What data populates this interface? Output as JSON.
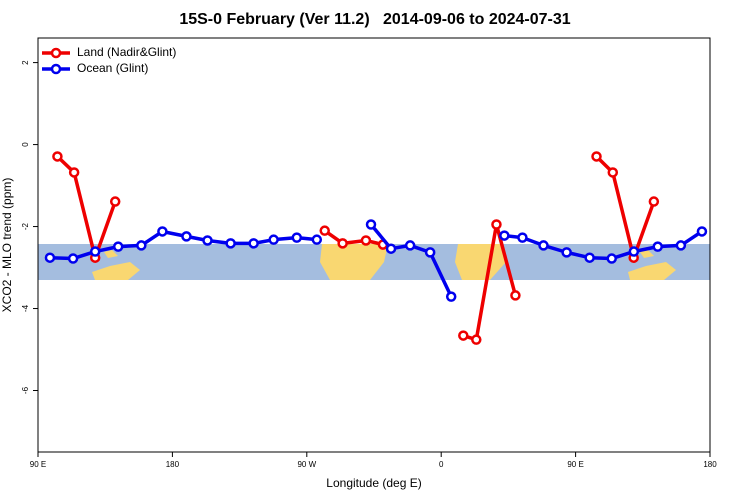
{
  "chart_data": {
    "type": "line",
    "title": "15S-0 February (Ver 11.2)   2014-09-06 to 2024-07-31",
    "x_label": "Longitude (deg E)",
    "y_label": "XCO2 - MLO trend (ppm)",
    "xlim": [
      90,
      540
    ],
    "ylim": [
      -7.5,
      2.6
    ],
    "xticks": [
      {
        "value": 90,
        "label": "90 E"
      },
      {
        "value": 180,
        "label": "180"
      },
      {
        "value": 270,
        "label": "90 W"
      },
      {
        "value": 360,
        "label": "0"
      },
      {
        "value": 450,
        "label": "90 E"
      },
      {
        "value": 540,
        "label": "180"
      }
    ],
    "yticks": [
      -6,
      -4,
      -2,
      0,
      2
    ],
    "legend": "top-left",
    "series": [
      {
        "name": "Land (Nadir&Glint)",
        "color": "#ee0000",
        "x": [
          103,
          114.2,
          128.3,
          141.7,
          null,
          282,
          294,
          309.6,
          321,
          null,
          374.8,
          383.5,
          397,
          409.7,
          null,
          464,
          474.9,
          488.9,
          502.4
        ],
        "values": [
          -0.29,
          -0.68,
          -2.76,
          -1.39,
          null,
          -2.1,
          -2.41,
          -2.34,
          -2.44,
          null,
          -4.66,
          -4.76,
          -1.95,
          -3.68,
          null,
          -0.29,
          -0.68,
          -2.76,
          -1.39
        ]
      },
      {
        "name": "Ocean (Glint)",
        "color": "#0000ee",
        "x": [
          98,
          113.5,
          128.3,
          143.7,
          159.2,
          173.3,
          189.4,
          203.5,
          219,
          234.4,
          247.8,
          263.3,
          276.7,
          null,
          313,
          326.4,
          339.2,
          352.6,
          366.7,
          null,
          402.3,
          414.4,
          428.5,
          444,
          459.4,
          474.2,
          489,
          505,
          520.5,
          534.6
        ],
        "values": [
          -2.76,
          -2.78,
          -2.61,
          -2.49,
          -2.46,
          -2.12,
          -2.24,
          -2.34,
          -2.41,
          -2.41,
          -2.32,
          -2.27,
          -2.32,
          null,
          -1.95,
          -2.54,
          -2.46,
          -2.63,
          -3.71,
          null,
          -2.22,
          -2.27,
          -2.46,
          -2.63,
          -2.76,
          -2.78,
          -2.61,
          -2.49,
          -2.46,
          -2.12
        ]
      }
    ]
  }
}
